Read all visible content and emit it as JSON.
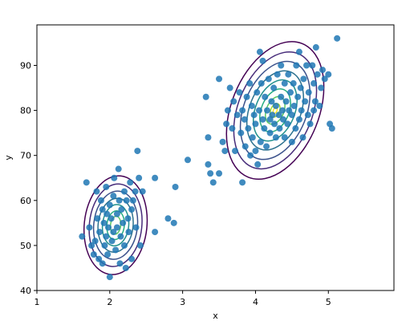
{
  "chart_data": {
    "type": "scatter",
    "title": "",
    "xlabel": "x",
    "ylabel": "y",
    "xlim": [
      1,
      5.9
    ],
    "ylim": [
      40,
      99
    ],
    "xticks": [
      1,
      2,
      3,
      4,
      5
    ],
    "yticks": [
      40,
      50,
      60,
      70,
      80,
      90
    ],
    "grid": false,
    "legend": "none",
    "series": [
      {
        "point_color": "#1f77b4",
        "point_alpha": 0.85,
        "points": [
          [
            1.62,
            52
          ],
          [
            1.68,
            64
          ],
          [
            1.72,
            54
          ],
          [
            1.75,
            50
          ],
          [
            1.78,
            48
          ],
          [
            1.8,
            51
          ],
          [
            1.82,
            62
          ],
          [
            1.83,
            56
          ],
          [
            1.85,
            47
          ],
          [
            1.86,
            53
          ],
          [
            1.88,
            60
          ],
          [
            1.9,
            58
          ],
          [
            1.9,
            46
          ],
          [
            1.92,
            55
          ],
          [
            1.93,
            50
          ],
          [
            1.95,
            52
          ],
          [
            1.95,
            63
          ],
          [
            1.96,
            57
          ],
          [
            1.97,
            48
          ],
          [
            1.98,
            54
          ],
          [
            2.0,
            59
          ],
          [
            2.0,
            43
          ],
          [
            2.02,
            56
          ],
          [
            2.03,
            51
          ],
          [
            2.05,
            61
          ],
          [
            2.05,
            53
          ],
          [
            2.06,
            65
          ],
          [
            2.08,
            49
          ],
          [
            2.1,
            57
          ],
          [
            2.1,
            54
          ],
          [
            2.12,
            67
          ],
          [
            2.13,
            60
          ],
          [
            2.14,
            46
          ],
          [
            2.15,
            52
          ],
          [
            2.16,
            58
          ],
          [
            2.18,
            55
          ],
          [
            2.2,
            62
          ],
          [
            2.2,
            50
          ],
          [
            2.22,
            45
          ],
          [
            2.23,
            60
          ],
          [
            2.25,
            56
          ],
          [
            2.26,
            53
          ],
          [
            2.28,
            64
          ],
          [
            2.3,
            58
          ],
          [
            2.3,
            47
          ],
          [
            2.32,
            60
          ],
          [
            2.35,
            62
          ],
          [
            2.36,
            54
          ],
          [
            2.38,
            71
          ],
          [
            2.4,
            65
          ],
          [
            2.42,
            50
          ],
          [
            2.45,
            62
          ],
          [
            2.62,
            65
          ],
          [
            2.62,
            53
          ],
          [
            2.8,
            56
          ],
          [
            2.88,
            55
          ],
          [
            2.9,
            63
          ],
          [
            3.07,
            69
          ],
          [
            3.32,
            83
          ],
          [
            3.35,
            74
          ],
          [
            3.35,
            68
          ],
          [
            3.38,
            66
          ],
          [
            3.42,
            64
          ],
          [
            3.5,
            66
          ],
          [
            3.5,
            87
          ],
          [
            3.55,
            73
          ],
          [
            3.58,
            71
          ],
          [
            3.6,
            77
          ],
          [
            3.62,
            80
          ],
          [
            3.65,
            85
          ],
          [
            3.68,
            76
          ],
          [
            3.7,
            82
          ],
          [
            3.72,
            71
          ],
          [
            3.75,
            79
          ],
          [
            3.78,
            84
          ],
          [
            3.8,
            75
          ],
          [
            3.82,
            64
          ],
          [
            3.82,
            80
          ],
          [
            3.85,
            78
          ],
          [
            3.86,
            72
          ],
          [
            3.88,
            83
          ],
          [
            3.9,
            76
          ],
          [
            3.92,
            86
          ],
          [
            3.93,
            70
          ],
          [
            3.95,
            81
          ],
          [
            3.96,
            74
          ],
          [
            3.98,
            79
          ],
          [
            4.0,
            77
          ],
          [
            4.0,
            71
          ],
          [
            4.02,
            84
          ],
          [
            4.03,
            68
          ],
          [
            4.05,
            80
          ],
          [
            4.06,
            93
          ],
          [
            4.07,
            73
          ],
          [
            4.08,
            86
          ],
          [
            4.1,
            78
          ],
          [
            4.1,
            91
          ],
          [
            4.12,
            76
          ],
          [
            4.13,
            83
          ],
          [
            4.15,
            72
          ],
          [
            4.16,
            80
          ],
          [
            4.18,
            87
          ],
          [
            4.2,
            78
          ],
          [
            4.2,
            75
          ],
          [
            4.22,
            82
          ],
          [
            4.23,
            79
          ],
          [
            4.25,
            85
          ],
          [
            4.26,
            77
          ],
          [
            4.28,
            81
          ],
          [
            4.28,
            74
          ],
          [
            4.3,
            88
          ],
          [
            4.32,
            79
          ],
          [
            4.33,
            76
          ],
          [
            4.35,
            90
          ],
          [
            4.35,
            83
          ],
          [
            4.37,
            80
          ],
          [
            4.38,
            78
          ],
          [
            4.4,
            86
          ],
          [
            4.4,
            74
          ],
          [
            4.42,
            82
          ],
          [
            4.44,
            77
          ],
          [
            4.45,
            88
          ],
          [
            4.46,
            80
          ],
          [
            4.48,
            84
          ],
          [
            4.5,
            79
          ],
          [
            4.5,
            73
          ],
          [
            4.52,
            86
          ],
          [
            4.53,
            81
          ],
          [
            4.55,
            76
          ],
          [
            4.56,
            90
          ],
          [
            4.58,
            83
          ],
          [
            4.6,
            78
          ],
          [
            4.6,
            93
          ],
          [
            4.62,
            85
          ],
          [
            4.63,
            80
          ],
          [
            4.65,
            74
          ],
          [
            4.66,
            87
          ],
          [
            4.68,
            82
          ],
          [
            4.7,
            90
          ],
          [
            4.72,
            79
          ],
          [
            4.73,
            84
          ],
          [
            4.75,
            77
          ],
          [
            4.78,
            90
          ],
          [
            4.8,
            86
          ],
          [
            4.8,
            80
          ],
          [
            4.82,
            82
          ],
          [
            4.83,
            94
          ],
          [
            4.85,
            88
          ],
          [
            4.88,
            81
          ],
          [
            4.9,
            85
          ],
          [
            4.92,
            89
          ],
          [
            4.95,
            87
          ],
          [
            5.0,
            88
          ],
          [
            5.02,
            77
          ],
          [
            5.05,
            76
          ],
          [
            5.12,
            96
          ]
        ]
      }
    ],
    "contours": {
      "colormap": "viridis",
      "groups": [
        {
          "center": [
            2.08,
            54.5
          ],
          "tilt_deg": 6,
          "levels": [
            {
              "rx": 0.43,
              "ry": 11.0,
              "color": "#440154"
            },
            {
              "rx": 0.36,
              "ry": 9.2,
              "color": "#472c7a"
            },
            {
              "rx": 0.3,
              "ry": 7.6,
              "color": "#3b518b"
            },
            {
              "rx": 0.24,
              "ry": 6.0,
              "color": "#2c718e"
            },
            {
              "rx": 0.18,
              "ry": 4.6,
              "color": "#21908d"
            },
            {
              "rx": 0.12,
              "ry": 3.2,
              "color": "#27ad81"
            },
            {
              "rx": 0.07,
              "ry": 2.0,
              "color": "#5cc863"
            }
          ]
        },
        {
          "center": [
            4.27,
            80.0
          ],
          "tilt_deg": 22,
          "levels": [
            {
              "rx": 0.6,
              "ry": 16.0,
              "color": "#440154"
            },
            {
              "rx": 0.51,
              "ry": 13.6,
              "color": "#472c7a"
            },
            {
              "rx": 0.43,
              "ry": 11.4,
              "color": "#3b518b"
            },
            {
              "rx": 0.35,
              "ry": 9.2,
              "color": "#2c718e"
            },
            {
              "rx": 0.27,
              "ry": 7.1,
              "color": "#21908d"
            },
            {
              "rx": 0.19,
              "ry": 5.0,
              "color": "#27ad81"
            },
            {
              "rx": 0.12,
              "ry": 3.2,
              "color": "#5cc863"
            },
            {
              "rx": 0.06,
              "ry": 1.6,
              "color": "#aadc32"
            },
            {
              "rx": 0.025,
              "ry": 0.7,
              "color": "#fde725"
            }
          ]
        }
      ]
    }
  }
}
